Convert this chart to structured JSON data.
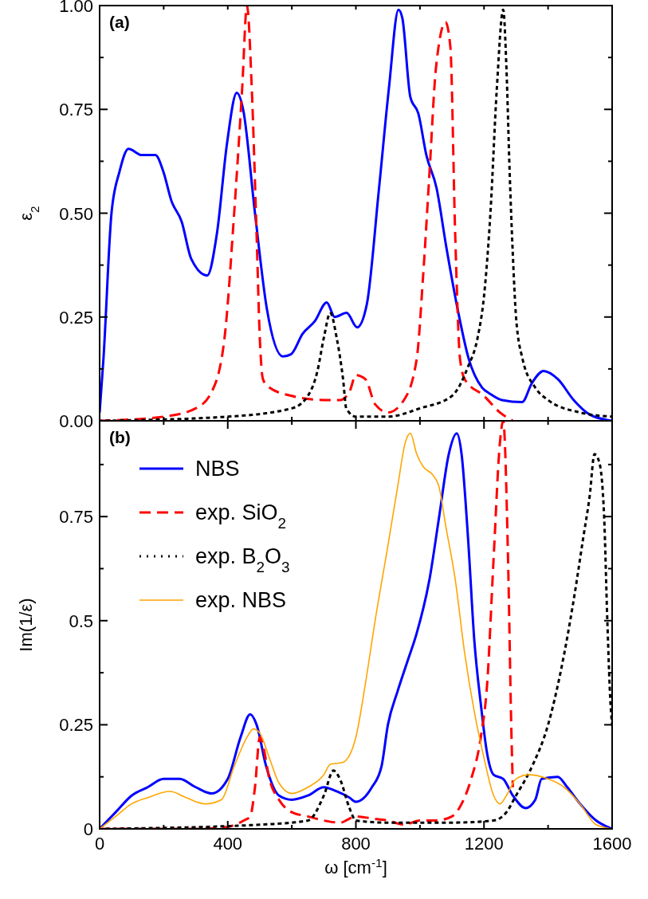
{
  "chart_data": [
    {
      "type": "line",
      "tick_labels": "y",
      "ylabel": "ε$_{2}$",
      "annotations": [
        "(a)"
      ],
      "legend": false,
      "xlim": [
        0,
        1600
      ],
      "xticks": [
        {
          "value": 0,
          "label": null
        },
        {
          "value": 200,
          "label": null
        },
        {
          "value": 400,
          "label": null
        },
        {
          "value": 600,
          "label": null
        },
        {
          "value": 800,
          "label": null
        },
        {
          "value": 1000,
          "label": null
        },
        {
          "value": 1200,
          "label": null
        },
        {
          "value": 1400,
          "label": null
        },
        {
          "value": 1600,
          "label": null
        }
      ],
      "ylim": [
        0,
        1
      ],
      "yticks": [
        {
          "value": 0,
          "label": "0.00"
        },
        {
          "value": 0.125,
          "label": null
        },
        {
          "value": 0.25,
          "label": "0.25"
        },
        {
          "value": 0.375,
          "label": null
        },
        {
          "value": 0.5,
          "label": "0.50"
        },
        {
          "value": 0.625,
          "label": null
        },
        {
          "value": 0.75,
          "label": "0.75"
        },
        {
          "value": 0.875,
          "label": null
        },
        {
          "value": 1,
          "label": "1.00"
        }
      ],
      "series": [
        {
          "color": "#0000ff",
          "line_style": "solid",
          "x": [
            0,
            12,
            37,
            62,
            90,
            132,
            174,
            199,
            224,
            256,
            286,
            336,
            366,
            398,
            428,
            448,
            485,
            522,
            572,
            597,
            634,
            672,
            709,
            734,
            771,
            804,
            834,
            871,
            903,
            933,
            945,
            970,
            995,
            1020,
            1052,
            1082,
            1120,
            1152,
            1194,
            1219,
            1256,
            1319,
            1349,
            1386,
            1431,
            1480,
            1530,
            1600
          ],
          "values": [
            0.02,
            0.15,
            0.5,
            0.6,
            0.655,
            0.64,
            0.64,
            0.6,
            0.53,
            0.48,
            0.39,
            0.35,
            0.45,
            0.67,
            0.79,
            0.75,
            0.5,
            0.27,
            0.155,
            0.16,
            0.21,
            0.24,
            0.285,
            0.25,
            0.26,
            0.225,
            0.28,
            0.55,
            0.8,
            0.99,
            0.97,
            0.78,
            0.74,
            0.64,
            0.56,
            0.42,
            0.26,
            0.15,
            0.08,
            0.065,
            0.05,
            0.045,
            0.09,
            0.12,
            0.1,
            0.05,
            0.015,
            0
          ]
        },
        {
          "color": "#ff0000",
          "line_style": "dashed",
          "x": [
            0,
            200,
            300,
            350,
            390,
            420,
            445,
            460,
            475,
            490,
            500,
            510,
            530,
            600,
            700,
            750,
            780,
            800,
            830,
            860,
            900,
            950,
            990,
            1010,
            1030,
            1050,
            1080,
            1095,
            1110,
            1125,
            1140,
            1200,
            1250,
            1290
          ],
          "values": [
            0,
            0.01,
            0.03,
            0.07,
            0.2,
            0.5,
            0.8,
            1,
            0.8,
            0.45,
            0.2,
            0.1,
            0.08,
            0.06,
            0.05,
            0.05,
            0.07,
            0.11,
            0.1,
            0.04,
            0.02,
            0.05,
            0.15,
            0.35,
            0.6,
            0.85,
            0.96,
            0.9,
            0.45,
            0.15,
            0.1,
            0.06,
            0.02,
            0
          ]
        },
        {
          "color": "#000000",
          "line_style": "dotted",
          "x": [
            0,
            400,
            600,
            650,
            680,
            700,
            720,
            740,
            760,
            770,
            800,
            900,
            1000,
            1100,
            1150,
            1180,
            1200,
            1220,
            1240,
            1260,
            1270,
            1280,
            1290,
            1300,
            1320,
            1360,
            1400,
            1500,
            1600
          ],
          "values": [
            0,
            0.01,
            0.03,
            0.06,
            0.12,
            0.2,
            0.26,
            0.2,
            0.1,
            0.03,
            0.01,
            0.01,
            0.03,
            0.06,
            0.13,
            0.2,
            0.3,
            0.5,
            0.8,
            0.99,
            0.85,
            0.6,
            0.4,
            0.25,
            0.15,
            0.08,
            0.05,
            0.02,
            0.01
          ]
        }
      ]
    },
    {
      "type": "line",
      "ylabel": "Im(1/ε)",
      "xlabel": "ω [cm$^{-1}$]",
      "annotations": [
        "(b)"
      ],
      "legend": "top left",
      "xlim": [
        0,
        1600
      ],
      "xticks": [
        0,
        {
          "value": 200,
          "label": null
        },
        400,
        {
          "value": 600,
          "label": null
        },
        800,
        {
          "value": 1000,
          "label": null
        },
        1200,
        {
          "value": 1400,
          "label": null
        },
        1600
      ],
      "ylim": [
        0,
        0.98
      ],
      "yticks": [
        {
          "value": 0,
          "label": "0"
        },
        {
          "value": 0.125,
          "label": null
        },
        {
          "value": 0.25,
          "label": "0.25"
        },
        {
          "value": 0.375,
          "label": null
        },
        {
          "value": 0.5,
          "label": "0.5"
        },
        {
          "value": 0.625,
          "label": null
        },
        {
          "value": 0.75,
          "label": "0.75"
        },
        {
          "value": 0.875,
          "label": null
        }
      ],
      "series": [
        {
          "name": "NBS",
          "color": "#0000ff",
          "line_style": "solid",
          "x": [
            0,
            50,
            100,
            150,
            200,
            250,
            300,
            350,
            400,
            440,
            470,
            490,
            520,
            560,
            600,
            650,
            700,
            740,
            780,
            800,
            850,
            880,
            900,
            930,
            960,
            990,
            1030,
            1060,
            1090,
            1115,
            1130,
            1150,
            1170,
            1190,
            1210,
            1230,
            1260,
            1290,
            1330,
            1360,
            1380,
            1430,
            1460,
            1500,
            1550,
            1600
          ],
          "values": [
            0,
            0.04,
            0.08,
            0.1,
            0.12,
            0.12,
            0.1,
            0.085,
            0.12,
            0.22,
            0.275,
            0.25,
            0.15,
            0.08,
            0.07,
            0.08,
            0.1,
            0.09,
            0.075,
            0.065,
            0.1,
            0.15,
            0.25,
            0.33,
            0.4,
            0.47,
            0.6,
            0.75,
            0.9,
            0.95,
            0.9,
            0.7,
            0.45,
            0.3,
            0.18,
            0.13,
            0.12,
            0.08,
            0.05,
            0.07,
            0.12,
            0.125,
            0.1,
            0.06,
            0.02,
            0
          ]
        },
        {
          "name": "exp. SiO$_{2}$",
          "color": "#ff0000",
          "line_style": "dashed",
          "x": [
            0,
            300,
            400,
            450,
            470,
            485,
            500,
            510,
            530,
            560,
            600,
            650,
            700,
            750,
            800,
            850,
            900,
            950,
            1000,
            1050,
            1100,
            1130,
            1160,
            1190,
            1210,
            1230,
            1250,
            1260,
            1275,
            1285,
            1290
          ],
          "values": [
            0,
            0,
            0.005,
            0.02,
            0.03,
            0.1,
            0.22,
            0.2,
            0.12,
            0.07,
            0.04,
            0.03,
            0.02,
            0.015,
            0.03,
            0.025,
            0.02,
            0.01,
            0.02,
            0.02,
            0.03,
            0.06,
            0.12,
            0.22,
            0.35,
            0.65,
            0.93,
            0.98,
            0.65,
            0.25,
            0.1
          ]
        },
        {
          "name": "exp. B$_{2}$O$_{3}$",
          "color": "#000000",
          "line_style": "dotted",
          "x": [
            0,
            500,
            650,
            700,
            730,
            750,
            780,
            800,
            900,
            1100,
            1230,
            1270,
            1300,
            1350,
            1400,
            1440,
            1480,
            1510,
            1530,
            1545,
            1560,
            1575,
            1585,
            1595,
            1600
          ],
          "values": [
            0,
            0.01,
            0.02,
            0.08,
            0.14,
            0.12,
            0.05,
            0.02,
            0.015,
            0.015,
            0.02,
            0.04,
            0.08,
            0.15,
            0.25,
            0.38,
            0.55,
            0.7,
            0.8,
            0.9,
            0.88,
            0.75,
            0.5,
            0.3,
            0.25
          ]
        },
        {
          "name": "exp. NBS",
          "color": "#ffa500",
          "line_style": "solid",
          "x": [
            0,
            50,
            100,
            150,
            220,
            270,
            330,
            380,
            420,
            460,
            480,
            500,
            530,
            560,
            600,
            650,
            700,
            720,
            760,
            800,
            830,
            860,
            900,
            930,
            955,
            970,
            990,
            1010,
            1040,
            1060,
            1080,
            1110,
            1140,
            1170,
            1200,
            1230,
            1250,
            1270,
            1300,
            1340,
            1400,
            1450,
            1500,
            1550,
            1600
          ],
          "values": [
            0,
            0.03,
            0.06,
            0.075,
            0.09,
            0.075,
            0.06,
            0.07,
            0.15,
            0.22,
            0.24,
            0.23,
            0.17,
            0.11,
            0.085,
            0.1,
            0.13,
            0.155,
            0.16,
            0.22,
            0.35,
            0.5,
            0.68,
            0.82,
            0.93,
            0.95,
            0.9,
            0.87,
            0.85,
            0.82,
            0.73,
            0.6,
            0.42,
            0.28,
            0.17,
            0.08,
            0.06,
            0.08,
            0.12,
            0.13,
            0.12,
            0.1,
            0.06,
            0.01,
            0
          ]
        }
      ]
    }
  ]
}
